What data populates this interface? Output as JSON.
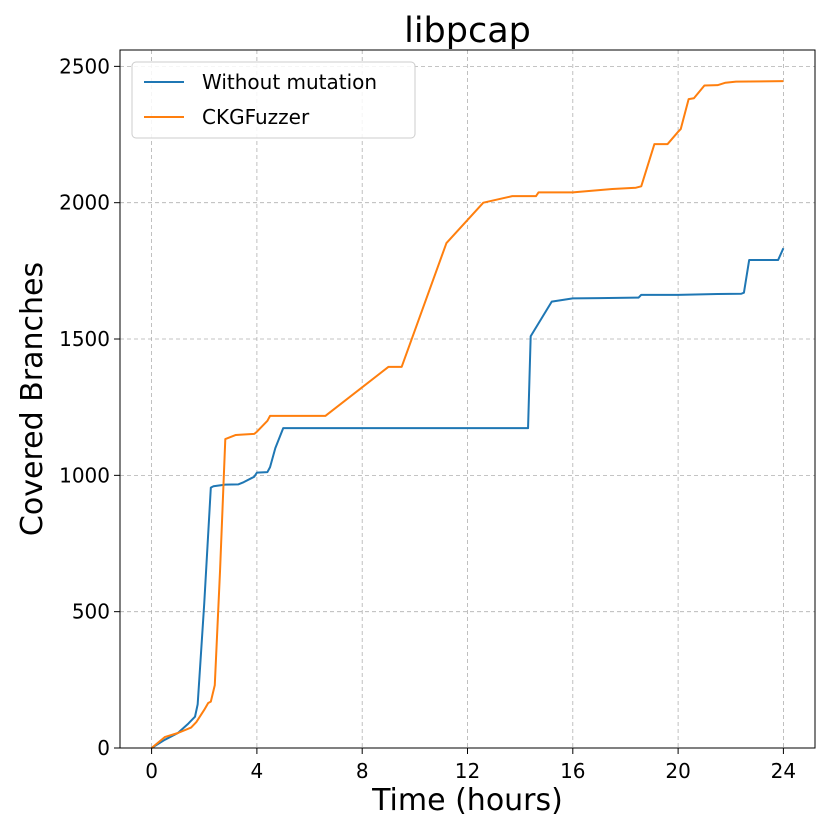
{
  "chart_data": {
    "type": "line",
    "title": "libpcap",
    "xlabel": "Time (hours)",
    "ylabel": "Covered Branches",
    "xlim": [
      -1.2,
      25.2
    ],
    "ylim": [
      0,
      2560
    ],
    "xticks": [
      0,
      4,
      8,
      12,
      16,
      20,
      24
    ],
    "yticks": [
      0,
      500,
      1000,
      1500,
      2000,
      2500
    ],
    "grid": true,
    "legend_position": "top-left",
    "series": [
      {
        "name": "Without mutation",
        "color": "#1f77b4",
        "x": [
          0,
          0.5,
          1.0,
          1.4,
          1.65,
          1.75,
          2.0,
          2.25,
          2.35,
          2.8,
          3.3,
          3.5,
          3.8,
          3.9,
          4.0,
          4.4,
          4.5,
          4.7,
          5.0,
          14.3,
          14.4,
          15.2,
          16.0,
          17.0,
          18.5,
          18.6,
          20.0,
          21.5,
          22.4,
          22.5,
          22.7,
          23.0,
          23.8,
          24.0
        ],
        "y": [
          0,
          30,
          55,
          90,
          115,
          160,
          530,
          955,
          960,
          966,
          967,
          975,
          990,
          995,
          1010,
          1012,
          1030,
          1100,
          1173,
          1173,
          1510,
          1637,
          1649,
          1650,
          1652,
          1662,
          1662,
          1665,
          1666,
          1670,
          1790,
          1790,
          1790,
          1833
        ]
      },
      {
        "name": "CKGFuzzer",
        "color": "#ff7f0e",
        "x": [
          0,
          0.5,
          1.0,
          1.5,
          1.7,
          2.0,
          2.15,
          2.25,
          2.4,
          2.6,
          2.8,
          3.2,
          3.5,
          3.9,
          4.0,
          4.4,
          4.5,
          5.0,
          6.6,
          9.0,
          9.5,
          11.2,
          12.6,
          13.7,
          14.6,
          14.7,
          16.0,
          17.5,
          18.4,
          18.6,
          19.1,
          19.6,
          20.0,
          20.1,
          20.4,
          20.6,
          21.0,
          21.5,
          21.8,
          22.2,
          24.0
        ],
        "y": [
          0,
          40,
          55,
          75,
          95,
          140,
          165,
          170,
          230,
          650,
          1133,
          1148,
          1150,
          1152,
          1160,
          1200,
          1218,
          1218,
          1218,
          1398,
          1398,
          1852,
          2000,
          2024,
          2024,
          2038,
          2038,
          2050,
          2055,
          2060,
          2215,
          2215,
          2260,
          2270,
          2380,
          2383,
          2430,
          2431,
          2440,
          2444,
          2446
        ]
      }
    ]
  }
}
